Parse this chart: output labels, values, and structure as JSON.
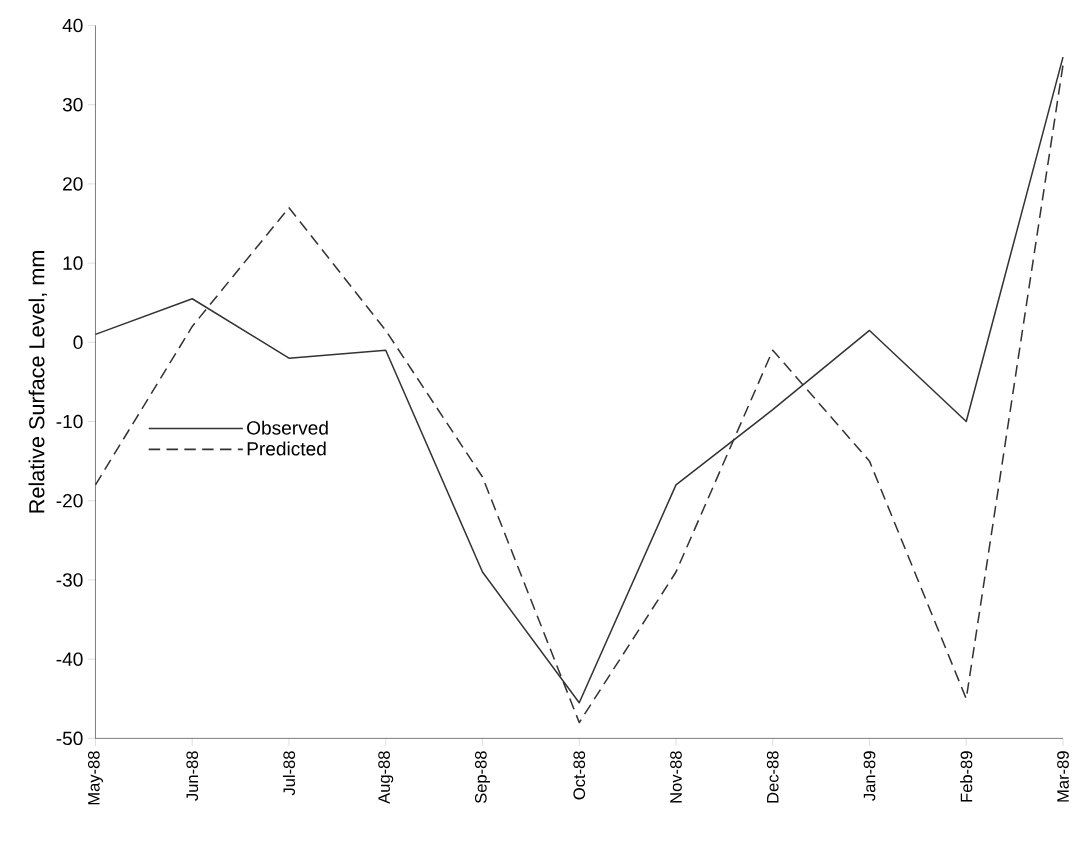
{
  "chart_data": {
    "type": "line",
    "ylabel": "Relative Surface Level, mm",
    "categories": [
      "May-88",
      "Jun-88",
      "Jul-88",
      "Aug-88",
      "Sep-88",
      "Oct-88",
      "Nov-88",
      "Dec-88",
      "Jan-89",
      "Feb-89",
      "Mar-89"
    ],
    "series": [
      {
        "name": "Observed",
        "color": "#333333",
        "line_style": "solid",
        "values": [
          1,
          5.5,
          -2,
          -1,
          -29,
          -45.5,
          -18,
          -8.5,
          1.5,
          -10,
          36
        ]
      },
      {
        "name": "Predicted",
        "color": "#333333",
        "line_style": "dashed",
        "values": [
          -18,
          2,
          17,
          1.5,
          -17,
          -48,
          -29,
          -1,
          -15,
          -45,
          35
        ]
      }
    ],
    "ylim": [
      -50,
      40
    ],
    "yticks": [
      -50,
      -40,
      -30,
      -20,
      -10,
      0,
      10,
      20,
      30,
      40
    ],
    "grid": false,
    "legend": "left",
    "marker": "none"
  }
}
